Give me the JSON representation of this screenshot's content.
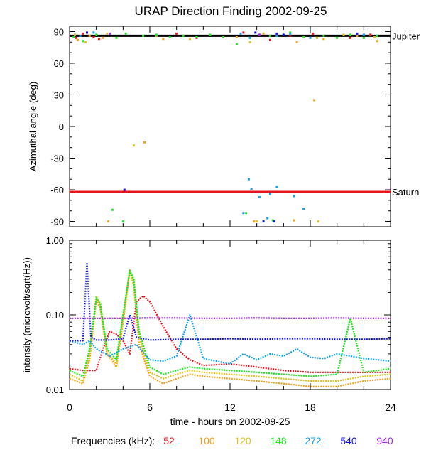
{
  "title": "URAP Direction Finding  2002-09-25",
  "xlabel": "time - hours on 2002-09-25",
  "legend": {
    "label": "Frequencies (kHz):",
    "entries": [
      {
        "name": "52",
        "color": "#e8141c"
      },
      {
        "name": "100",
        "color": "#f5a01a"
      },
      {
        "name": "120",
        "color": "#dcc21a"
      },
      {
        "name": "148",
        "color": "#1ee61e"
      },
      {
        "name": "272",
        "color": "#14a0f0"
      },
      {
        "name": "540",
        "color": "#1414e6"
      },
      {
        "name": "940",
        "color": "#a028e6"
      }
    ]
  },
  "chart_data": [
    {
      "type": "scatter",
      "ylabel": "Azimuthal angle (deg)",
      "xlim": [
        0,
        24
      ],
      "ylim": [
        -95,
        95
      ],
      "x_ticks": [
        "0",
        "6",
        "12",
        "18",
        "24"
      ],
      "y_ticks": [
        "90",
        "60",
        "30",
        "0",
        "-30",
        "-60",
        "-90"
      ],
      "reference_lines": [
        {
          "name": "Jupiter",
          "value": 86,
          "color": "#000000"
        },
        {
          "name": "Saturn",
          "value": -62,
          "color": "#e8141c"
        }
      ],
      "series": [
        {
          "name": "52",
          "values": [
            [
              0.5,
              84
            ],
            [
              1.0,
              88
            ],
            [
              1.8,
              85
            ],
            [
              2.2,
              83
            ],
            [
              8.0,
              88
            ],
            [
              9.5,
              84
            ],
            [
              13.0,
              89
            ],
            [
              15.0,
              82
            ],
            [
              16.5,
              86
            ],
            [
              18.2,
              88
            ],
            [
              21.0,
              84
            ],
            [
              22.5,
              87
            ],
            [
              4.6,
              -62
            ]
          ]
        },
        {
          "name": "100",
          "values": [
            [
              0.6,
              82
            ],
            [
              1.5,
              86
            ],
            [
              2.5,
              84
            ],
            [
              7.0,
              83
            ],
            [
              12.5,
              85
            ],
            [
              14.5,
              88
            ],
            [
              17.0,
              80
            ],
            [
              19.0,
              83
            ],
            [
              21.5,
              86
            ],
            [
              23.0,
              81
            ],
            [
              18.3,
              25
            ],
            [
              5.6,
              -15
            ],
            [
              2.9,
              -90
            ],
            [
              13.8,
              -90
            ],
            [
              16.8,
              -89
            ]
          ]
        },
        {
          "name": "120",
          "values": [
            [
              0.4,
              87
            ],
            [
              1.2,
              80
            ],
            [
              2.8,
              88
            ],
            [
              6.5,
              86
            ],
            [
              9.0,
              83
            ],
            [
              13.5,
              80
            ],
            [
              15.5,
              86
            ],
            [
              18.5,
              84
            ],
            [
              20.5,
              87
            ],
            [
              22.8,
              85
            ],
            [
              4.8,
              -18
            ],
            [
              14.0,
              -90
            ],
            [
              18.6,
              -90
            ]
          ]
        },
        {
          "name": "148",
          "values": [
            [
              0.3,
              85
            ],
            [
              1.0,
              81
            ],
            [
              2.0,
              87
            ],
            [
              3.5,
              84
            ],
            [
              4.2,
              88
            ],
            [
              5.5,
              86
            ],
            [
              6.5,
              87
            ],
            [
              7.5,
              85
            ],
            [
              8.5,
              86
            ],
            [
              9.5,
              85
            ],
            [
              10.5,
              87
            ],
            [
              11.5,
              85
            ],
            [
              12.5,
              78
            ],
            [
              13.5,
              84
            ],
            [
              15.0,
              86
            ],
            [
              16.5,
              89
            ],
            [
              17.5,
              85
            ],
            [
              19.0,
              86
            ],
            [
              20.0,
              84
            ],
            [
              21.0,
              87
            ],
            [
              22.0,
              84
            ],
            [
              23.0,
              86
            ],
            [
              3.2,
              -79
            ],
            [
              4.0,
              -90
            ],
            [
              13.2,
              -82
            ],
            [
              15.2,
              -89
            ]
          ]
        },
        {
          "name": "272",
          "values": [
            [
              0.8,
              86
            ],
            [
              1.8,
              89
            ],
            [
              12.8,
              88
            ],
            [
              13.5,
              84
            ],
            [
              15.5,
              86
            ],
            [
              16.5,
              88
            ],
            [
              18.0,
              84
            ],
            [
              22.0,
              87
            ],
            [
              13.4,
              -50
            ],
            [
              13.6,
              -59
            ],
            [
              14.2,
              -67
            ],
            [
              15.0,
              -64
            ],
            [
              15.5,
              -57
            ],
            [
              16.8,
              -66
            ],
            [
              17.5,
              -78
            ],
            [
              13.0,
              -82
            ],
            [
              14.8,
              -87
            ]
          ]
        },
        {
          "name": "540",
          "values": [
            [
              1.3,
              89
            ],
            [
              13.9,
              89
            ],
            [
              15.5,
              88
            ],
            [
              16.0,
              87
            ],
            [
              21.5,
              88
            ],
            [
              4.1,
              -60
            ],
            [
              14.5,
              -90
            ],
            [
              15.3,
              -90
            ]
          ]
        },
        {
          "name": "940",
          "values": [
            [
              3.0,
              88
            ],
            [
              14.2,
              87
            ]
          ]
        }
      ]
    },
    {
      "type": "line",
      "ylabel": "intensity (microvolt/sqrt(Hz))",
      "xlim": [
        0,
        24
      ],
      "ylim": [
        0.01,
        1.0
      ],
      "yscale": "log",
      "x_ticks": [
        "0",
        "6",
        "12",
        "18",
        "24"
      ],
      "y_ticks": [
        "1.00",
        "0.10",
        "0.01"
      ],
      "series": [
        {
          "name": "52",
          "x": [
            0,
            1,
            2,
            2.5,
            3,
            3.5,
            4,
            4.5,
            5,
            5.5,
            6,
            7,
            8,
            9,
            10,
            12,
            14,
            16,
            18,
            20,
            22,
            24
          ],
          "values": [
            0.019,
            0.018,
            0.018,
            0.035,
            0.06,
            0.055,
            0.045,
            0.03,
            0.15,
            0.18,
            0.15,
            0.07,
            0.035,
            0.025,
            0.021,
            0.022,
            0.02,
            0.018,
            0.017,
            0.017,
            0.017,
            0.017
          ]
        },
        {
          "name": "100",
          "x": [
            0,
            1,
            1.5,
            2,
            2.3,
            2.8,
            3.5,
            4,
            4.5,
            4.8,
            5.2,
            6,
            7,
            8,
            9,
            10,
            12,
            14,
            16,
            18,
            20,
            22,
            24
          ],
          "values": [
            0.014,
            0.012,
            0.025,
            0.16,
            0.12,
            0.03,
            0.02,
            0.08,
            0.38,
            0.25,
            0.04,
            0.015,
            0.012,
            0.014,
            0.016,
            0.015,
            0.014,
            0.013,
            0.012,
            0.011,
            0.011,
            0.013,
            0.014
          ]
        },
        {
          "name": "120",
          "x": [
            0,
            1,
            1.5,
            2,
            2.3,
            2.8,
            3.5,
            4,
            4.5,
            4.8,
            5.2,
            6,
            7,
            8,
            9,
            10,
            12,
            14,
            16,
            18,
            20,
            22,
            24
          ],
          "values": [
            0.016,
            0.013,
            0.03,
            0.18,
            0.13,
            0.032,
            0.022,
            0.09,
            0.4,
            0.27,
            0.05,
            0.017,
            0.014,
            0.016,
            0.018,
            0.017,
            0.016,
            0.015,
            0.014,
            0.013,
            0.013,
            0.015,
            0.016
          ]
        },
        {
          "name": "148",
          "x": [
            0,
            1,
            1.5,
            2,
            2.3,
            2.8,
            3.5,
            4,
            4.5,
            4.8,
            5.2,
            6,
            7,
            8,
            9,
            10,
            12,
            14,
            16,
            18,
            20,
            21,
            22,
            24
          ],
          "values": [
            0.018,
            0.015,
            0.035,
            0.17,
            0.14,
            0.035,
            0.025,
            0.1,
            0.39,
            0.3,
            0.06,
            0.02,
            0.016,
            0.018,
            0.02,
            0.019,
            0.018,
            0.017,
            0.016,
            0.015,
            0.016,
            0.09,
            0.017,
            0.019
          ]
        },
        {
          "name": "272",
          "x": [
            0,
            1,
            1.5,
            2,
            3,
            4,
            5,
            6,
            7,
            8,
            9,
            10,
            11,
            12,
            13,
            14,
            15,
            16,
            17,
            18,
            19,
            20,
            21,
            22,
            23,
            24
          ],
          "values": [
            0.045,
            0.04,
            0.045,
            0.035,
            0.028,
            0.035,
            0.04,
            0.025,
            0.024,
            0.028,
            0.1,
            0.026,
            0.024,
            0.022,
            0.03,
            0.025,
            0.03,
            0.028,
            0.035,
            0.027,
            0.026,
            0.03,
            0.028,
            0.026,
            0.025,
            0.024
          ]
        },
        {
          "name": "540",
          "x": [
            0,
            1,
            1.3,
            1.6,
            2,
            3,
            4,
            4.5,
            5,
            6,
            8,
            10,
            12,
            14,
            16,
            18,
            20,
            22,
            24
          ],
          "values": [
            0.045,
            0.045,
            0.5,
            0.05,
            0.046,
            0.046,
            0.048,
            0.1,
            0.05,
            0.046,
            0.047,
            0.047,
            0.048,
            0.047,
            0.048,
            0.048,
            0.047,
            0.047,
            0.048
          ]
        },
        {
          "name": "940",
          "x": [
            0,
            2,
            4,
            6,
            8,
            10,
            12,
            14,
            16,
            18,
            20,
            22,
            24
          ],
          "values": [
            0.09,
            0.09,
            0.09,
            0.091,
            0.091,
            0.09,
            0.09,
            0.091,
            0.09,
            0.09,
            0.091,
            0.09,
            0.09
          ]
        }
      ]
    }
  ]
}
